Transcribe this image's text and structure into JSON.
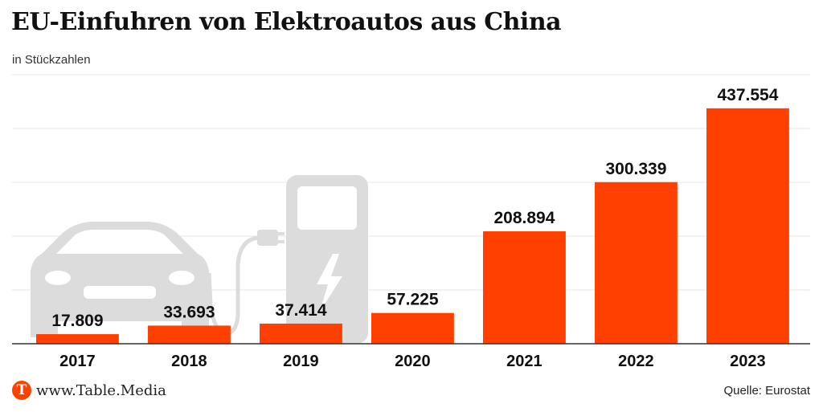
{
  "title": "EU-Einfuhren von Elektroautos aus China",
  "subtitle": "in Stückzahlen",
  "footer": {
    "logo_letter": "T",
    "brand": "www.Table.Media",
    "source": "Quelle: Eurostat"
  },
  "colors": {
    "bar": "#ff4000",
    "illustration": "#dcdcdc",
    "gridline": "#e6e6e6",
    "baseline": "#333333"
  },
  "chart_data": {
    "type": "bar",
    "title": "EU-Einfuhren von Elektroautos aus China",
    "subtitle": "in Stückzahlen",
    "categories": [
      "2017",
      "2018",
      "2019",
      "2020",
      "2021",
      "2022",
      "2023"
    ],
    "values": [
      17809,
      33693,
      37414,
      57225,
      208894,
      300339,
      437554
    ],
    "value_labels": [
      "17.809",
      "33.693",
      "37.414",
      "57.225",
      "208.894",
      "300.339",
      "437.554"
    ],
    "ylim": [
      0,
      500000
    ],
    "grid": true,
    "y_tick_labels_visible": false,
    "xlabel": "",
    "ylabel": ""
  }
}
